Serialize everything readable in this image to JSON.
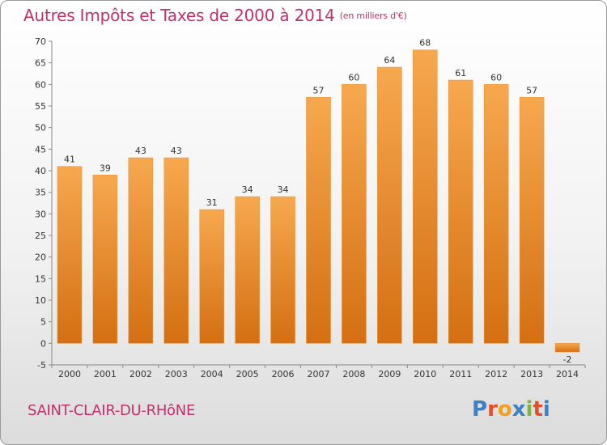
{
  "title": "Autres Impôts et Taxes de 2000 à 2014",
  "title_unit": "(en milliers d'€)",
  "commune": "SAINT-CLAIR-DU-RHôNE",
  "logo": {
    "letters": [
      "P",
      "r",
      "o",
      "x",
      "i",
      "t",
      "i"
    ],
    "colors": [
      "#3f7fc3",
      "#e0502a",
      "#f0a020",
      "#3f7fc3",
      "#7ab740",
      "#e0502a",
      "#3f7fc3"
    ]
  },
  "colors": {
    "bar_top": "#f7a84f",
    "bar_bottom": "#d46f12",
    "title": "#c0306a"
  },
  "chart_data": {
    "type": "bar",
    "categories": [
      "2000",
      "2001",
      "2002",
      "2003",
      "2004",
      "2005",
      "2006",
      "2007",
      "2008",
      "2009",
      "2010",
      "2011",
      "2012",
      "2013",
      "2014"
    ],
    "values": [
      41,
      39,
      43,
      43,
      31,
      34,
      34,
      57,
      60,
      64,
      68,
      61,
      60,
      57,
      -2
    ],
    "ylim": [
      -5,
      70
    ],
    "yticks": [
      -5,
      0,
      5,
      10,
      15,
      20,
      25,
      30,
      35,
      40,
      45,
      50,
      55,
      60,
      65,
      70
    ],
    "grid": false,
    "data_labels": true
  }
}
